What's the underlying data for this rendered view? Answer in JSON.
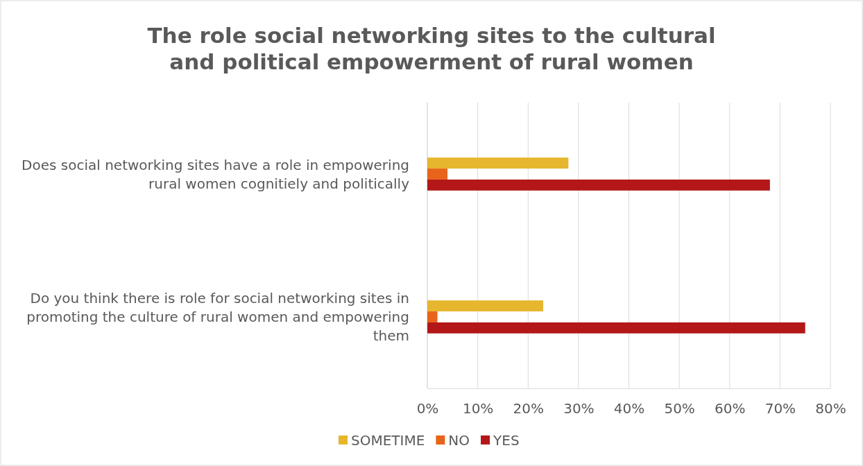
{
  "chart_data": {
    "type": "bar",
    "orientation": "horizontal",
    "title": "The role social networking sites to the cultural and political empowerment of rural women",
    "categories": [
      "Does social networking sites have a role in empowering rural women cognitiely and politically",
      "Do you think there is role for social networking sites in promoting the culture of rural women and empowering them"
    ],
    "series": [
      {
        "name": "SOMETIME",
        "color": "#e6b62e",
        "values": [
          28,
          23
        ]
      },
      {
        "name": "NO",
        "color": "#e8641b",
        "values": [
          4,
          2
        ]
      },
      {
        "name": "YES",
        "color": "#b31717",
        "values": [
          68,
          75
        ]
      }
    ],
    "xlim": [
      0,
      80
    ],
    "xticks": [
      {
        "value": 0,
        "label": "0%"
      },
      {
        "value": 10,
        "label": "10%"
      },
      {
        "value": 20,
        "label": "20%"
      },
      {
        "value": 30,
        "label": "30%"
      },
      {
        "value": 40,
        "label": "40%"
      },
      {
        "value": 50,
        "label": "50%"
      },
      {
        "value": 60,
        "label": "60%"
      },
      {
        "value": 70,
        "label": "70%"
      },
      {
        "value": 80,
        "label": "80%"
      }
    ],
    "grid": "x",
    "legend": "bottom"
  }
}
